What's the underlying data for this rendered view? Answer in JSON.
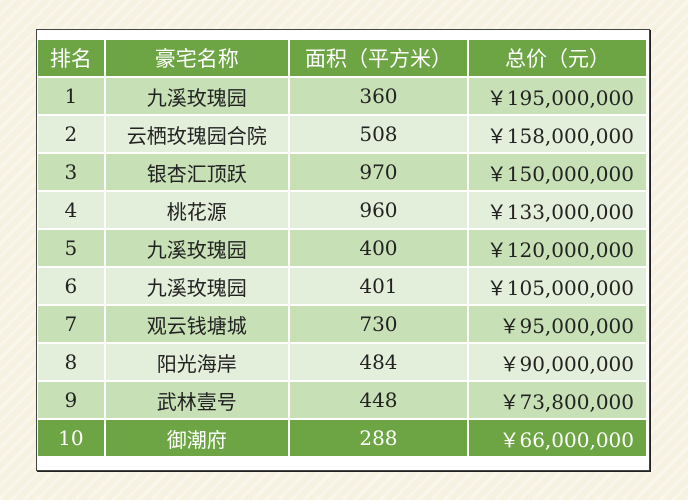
{
  "table": {
    "headers": [
      "排名",
      "豪宅名称",
      "面积（平方米）",
      "总价（元）"
    ],
    "rows": [
      {
        "rank": "1",
        "name": "九溪玫瑰园",
        "area": "360",
        "price": "￥195,000,000"
      },
      {
        "rank": "2",
        "name": "云栖玫瑰园合院",
        "area": "508",
        "price": "￥158,000,000"
      },
      {
        "rank": "3",
        "name": "银杏汇顶跃",
        "area": "970",
        "price": "￥150,000,000"
      },
      {
        "rank": "4",
        "name": "桃花源",
        "area": "960",
        "price": "￥133,000,000"
      },
      {
        "rank": "5",
        "name": "九溪玫瑰园",
        "area": "400",
        "price": "￥120,000,000"
      },
      {
        "rank": "6",
        "name": "九溪玫瑰园",
        "area": "401",
        "price": "￥105,000,000"
      },
      {
        "rank": "7",
        "name": "观云钱塘城",
        "area": "730",
        "price": "￥95,000,000"
      },
      {
        "rank": "8",
        "name": "阳光海岸",
        "area": "484",
        "price": "￥90,000,000"
      },
      {
        "rank": "9",
        "name": "武林壹号",
        "area": "448",
        "price": "￥73,800,000"
      },
      {
        "rank": "10",
        "name": "御潮府",
        "area": "288",
        "price": "￥66,000,000"
      }
    ]
  },
  "colors": {
    "header": "#6ea544",
    "row_dark": "#c7e0b5",
    "row_light": "#e3efdb",
    "background": "#f6f1e1"
  }
}
